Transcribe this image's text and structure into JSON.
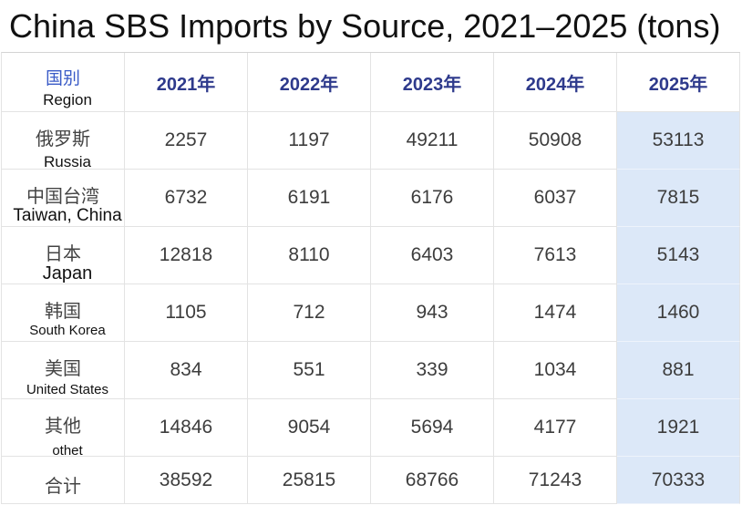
{
  "colors": {
    "title_text": "#111111",
    "region_header_text": "#3a5bc7",
    "year_header_text": "#2e3a8c",
    "cell_text": "#3d3d3d",
    "highlight_column_bg": "#dce8f8",
    "grid_line": "#e3e3e3"
  },
  "chart_data": {
    "type": "table",
    "title": "China SBS Imports by Source, 2021–2025 (tons)",
    "header": {
      "region_zh": "国别",
      "region_en": "Region",
      "years": [
        "2021年",
        "2022年",
        "2023年",
        "2024年",
        "2025年"
      ]
    },
    "rows": [
      {
        "region_zh": "俄罗斯",
        "region_en": "Russia",
        "values": [
          2257,
          1197,
          49211,
          50908,
          53113
        ]
      },
      {
        "region_zh": "中国台湾",
        "region_en": "Taiwan, China",
        "values": [
          6732,
          6191,
          6176,
          6037,
          7815
        ]
      },
      {
        "region_zh": "日本",
        "region_en": "Japan",
        "values": [
          12818,
          8110,
          6403,
          7613,
          5143
        ]
      },
      {
        "region_zh": "韩国",
        "region_en": "South Korea",
        "values": [
          1105,
          712,
          943,
          1474,
          1460
        ]
      },
      {
        "region_zh": "美国",
        "region_en": "United States",
        "values": [
          834,
          551,
          339,
          1034,
          881
        ]
      },
      {
        "region_zh": "其他",
        "region_en": "othet",
        "values": [
          14846,
          9054,
          5694,
          4177,
          1921
        ]
      },
      {
        "region_zh": "合计",
        "values": [
          38592,
          25815,
          68766,
          71243,
          70333
        ]
      }
    ]
  }
}
